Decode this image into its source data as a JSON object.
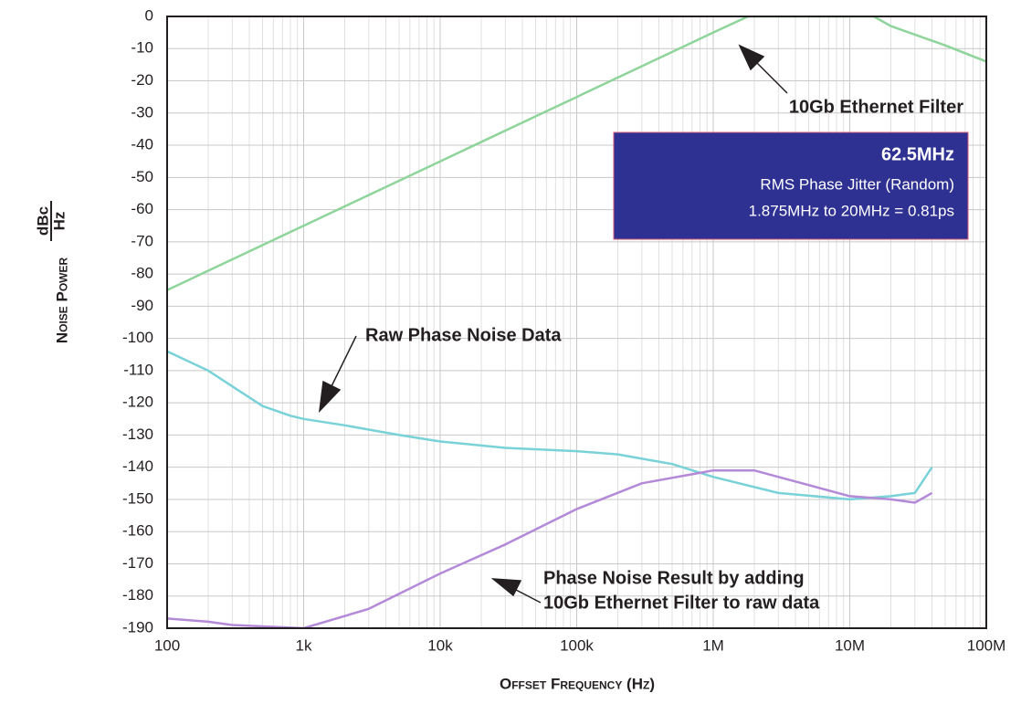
{
  "chart_data": {
    "type": "line",
    "x_log": true,
    "grid": true,
    "minor_grid": true,
    "xlabel": "Offset Frequency (Hz)",
    "ylabel": "Noise Power",
    "yunit_num": "dBc",
    "yunit_den": "Hz",
    "xlim": [
      100,
      100000000
    ],
    "xticks": [
      100,
      {
        "value": 1000,
        "label": "1k"
      },
      {
        "value": 10000,
        "label": "10k"
      },
      {
        "value": 100000,
        "label": "100k"
      },
      {
        "value": 1000000,
        "label": "1M"
      },
      {
        "value": 10000000,
        "label": "10M"
      },
      {
        "value": 100000000,
        "label": "100M"
      }
    ],
    "ylim": [
      -190,
      0
    ],
    "yticks": [
      0,
      -10,
      -20,
      -30,
      -40,
      -50,
      -60,
      -70,
      -80,
      -90,
      -100,
      -110,
      -120,
      -130,
      -140,
      -150,
      -160,
      -170,
      -180,
      -190
    ],
    "series": [
      {
        "name": "10Gb Ethernet Filter",
        "color": "#8ed49b",
        "x": [
          100,
          1000,
          10000,
          100000,
          1000000,
          1800000,
          15000000,
          20000000,
          50000000,
          100000000
        ],
        "values": [
          -85,
          -65,
          -45,
          -25,
          -5,
          0,
          0,
          -3,
          -9,
          -14
        ]
      },
      {
        "name": "Raw Phase Noise Data",
        "color": "#79d2d8",
        "x": [
          100,
          200,
          500,
          800,
          1000,
          2000,
          5000,
          10000,
          30000,
          100000,
          200000,
          500000,
          1000000,
          3000000,
          10000000,
          20000000,
          30000000,
          40000000
        ],
        "values": [
          -104,
          -110,
          -121,
          -124,
          -125,
          -127,
          -130,
          -132,
          -134,
          -135,
          -136,
          -139,
          -143,
          -148,
          -150,
          -149,
          -148,
          -140
        ]
      },
      {
        "name": "Phase Noise Result",
        "color": "#b48ad8",
        "x": [
          100,
          200,
          300,
          1000,
          3000,
          10000,
          30000,
          100000,
          300000,
          1000000,
          2000000,
          3000000,
          10000000,
          20000000,
          30000000,
          40000000
        ],
        "values": [
          -187,
          -188,
          -189,
          -190,
          -184,
          -173,
          -164,
          -153,
          -145,
          -141,
          -141,
          -143,
          -149,
          -150,
          -151,
          -148
        ]
      }
    ],
    "annotations": [
      {
        "lines": [
          "10Gb Ethernet Filter"
        ]
      },
      {
        "lines": [
          "Raw Phase Noise Data"
        ]
      },
      {
        "lines": [
          "Phase Noise Result by adding",
          "10Gb Ethernet Filter to raw data"
        ]
      }
    ],
    "info_box": {
      "title": "62.5MHz",
      "lines": [
        "RMS Phase Jitter (Random)",
        "1.875MHz to 20MHz = 0.81ps"
      ]
    }
  }
}
